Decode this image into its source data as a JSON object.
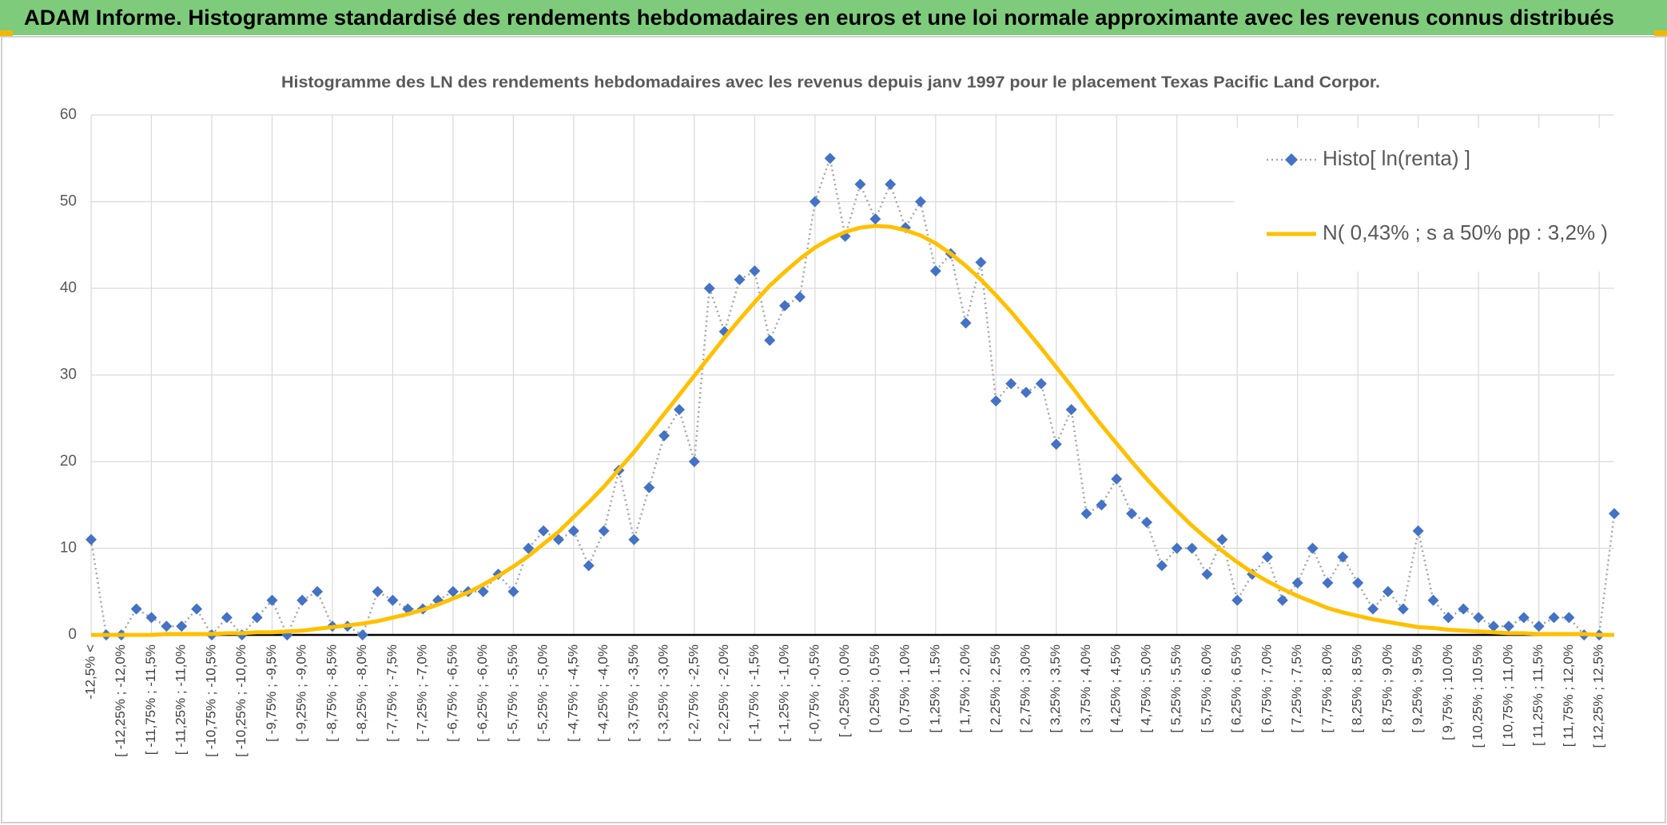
{
  "header": {
    "title": "ADAM Informe. Histogramme standardisé des rendements hebdomadaires en euros et une loi normale approximante avec les revenus connus distribués"
  },
  "chart_data": {
    "type": "line",
    "title": "Histogramme des LN des rendements hebdomadaires avec les revenus depuis janv 1997 pour le placement Texas Pacific Land Corpor.",
    "categories": [
      "-12,5% <",
      null,
      "[ -12,25% ; -12,0%",
      null,
      "[ -11,75% ; -11,5%",
      null,
      "[ -11,25% ; -11,0%",
      null,
      "[ -10,75% ; -10,5%",
      null,
      "[ -10,25% ; -10,0%",
      null,
      "[ -9,75% ; -9,5%",
      null,
      "[ -9,25% ; -9,0%",
      null,
      "[ -8,75% ; -8,5%",
      null,
      "[ -8,25% ; -8,0%",
      null,
      "[ -7,75% ; -7,5%",
      null,
      "[ -7,25% ; -7,0%",
      null,
      "[ -6,75% ; -6,5%",
      null,
      "[ -6,25% ; -6,0%",
      null,
      "[ -5,75% ; -5,5%",
      null,
      "[ -5,25% ; -5,0%",
      null,
      "[ -4,75% ; -4,5%",
      null,
      "[ -4,25% ; -4,0%",
      null,
      "[ -3,75% ; -3,5%",
      null,
      "[ -3,25% ; -3,0%",
      null,
      "[ -2,75% ; -2,5%",
      null,
      "[ -2,25% ; -2,0%",
      null,
      "[ -1,75% ; -1,5%",
      null,
      "[ -1,25% ; -1,0%",
      null,
      "[ -0,75% ; -0,5%",
      null,
      "[ -0,25% ; 0,0%",
      null,
      "[ 0,25% ; 0,5%",
      null,
      "[ 0,75% ; 1,0%",
      null,
      "[ 1,25% ; 1,5%",
      null,
      "[ 1,75% ; 2,0%",
      null,
      "[ 2,25% ; 2,5%",
      null,
      "[ 2,75% ; 3,0%",
      null,
      "[ 3,25% ; 3,5%",
      null,
      "[ 3,75% ; 4,0%",
      null,
      "[ 4,25% ; 4,5%",
      null,
      "[ 4,75% ; 5,0%",
      null,
      "[ 5,25% ; 5,5%",
      null,
      "[ 5,75% ; 6,0%",
      null,
      "[ 6,25% ; 6,5%",
      null,
      "[ 6,75% ; 7,0%",
      null,
      "[ 7,25% ; 7,5%",
      null,
      "[ 7,75% ; 8,0%",
      null,
      "[ 8,25% ; 8,5%",
      null,
      "[ 8,75% ; 9,0%",
      null,
      "[ 9,25% ; 9,5%",
      null,
      "[ 9,75% ; 10,0%",
      null,
      "[ 10,25% ; 10,5%",
      null,
      "[ 10,75% ; 11,0%",
      null,
      "[ 11,25% ; 11,5%",
      null,
      "[ 11,75% ; 12,0%",
      null,
      "[ 12,25% ; 12,5%",
      null
    ],
    "series": [
      {
        "name": "Histo[ ln(renta) ]",
        "color": "#4472c4",
        "line_color": "#a5a5a5",
        "values": [
          11,
          0,
          0,
          3,
          2,
          1,
          1,
          3,
          0,
          2,
          0,
          2,
          4,
          0,
          4,
          5,
          1,
          1,
          0,
          5,
          4,
          3,
          3,
          4,
          5,
          5,
          5,
          7,
          5,
          10,
          12,
          11,
          12,
          8,
          12,
          19,
          11,
          17,
          23,
          26,
          20,
          40,
          35,
          41,
          42,
          34,
          38,
          39,
          50,
          55,
          46,
          52,
          48,
          52,
          47,
          50,
          42,
          44,
          36,
          43,
          27,
          29,
          28,
          29,
          22,
          26,
          14,
          15,
          18,
          14,
          13,
          8,
          10,
          10,
          7,
          11,
          4,
          7,
          9,
          4,
          6,
          10,
          6,
          9,
          6,
          3,
          5,
          3,
          12,
          4,
          2,
          3,
          2,
          1,
          1,
          2,
          1,
          2,
          2,
          0,
          0,
          14
        ]
      },
      {
        "name": "N( 0,43% ; s a 50% pp : 3,2% )",
        "color": "#ffc000",
        "values": [
          0.0,
          0.0,
          0.0,
          0.0,
          0.0,
          0.1,
          0.1,
          0.1,
          0.1,
          0.2,
          0.2,
          0.3,
          0.3,
          0.4,
          0.5,
          0.7,
          0.9,
          1.1,
          1.3,
          1.6,
          2.0,
          2.4,
          2.9,
          3.5,
          4.2,
          4.9,
          5.8,
          6.8,
          7.9,
          9.1,
          10.5,
          11.9,
          13.6,
          15.3,
          17.1,
          19.1,
          21.1,
          23.3,
          25.5,
          27.7,
          29.9,
          32.1,
          34.3,
          36.4,
          38.4,
          40.3,
          41.9,
          43.4,
          44.7,
          45.7,
          46.5,
          47.0,
          47.2,
          47.1,
          46.7,
          46.1,
          45.2,
          44.0,
          42.6,
          41.0,
          39.2,
          37.3,
          35.2,
          33.1,
          30.9,
          28.7,
          26.4,
          24.2,
          22.1,
          20.0,
          18.0,
          16.1,
          14.3,
          12.6,
          11.1,
          9.7,
          8.4,
          7.2,
          6.2,
          5.3,
          4.5,
          3.8,
          3.1,
          2.6,
          2.2,
          1.8,
          1.5,
          1.2,
          0.9,
          0.8,
          0.6,
          0.5,
          0.4,
          0.3,
          0.2,
          0.2,
          0.1,
          0.1,
          0.1,
          0.1,
          0.0,
          0.0
        ]
      }
    ],
    "ylim": [
      0,
      60
    ],
    "yticks": [
      0,
      10,
      20,
      30,
      40,
      50,
      60
    ],
    "grid": true,
    "legend": "upper right"
  }
}
